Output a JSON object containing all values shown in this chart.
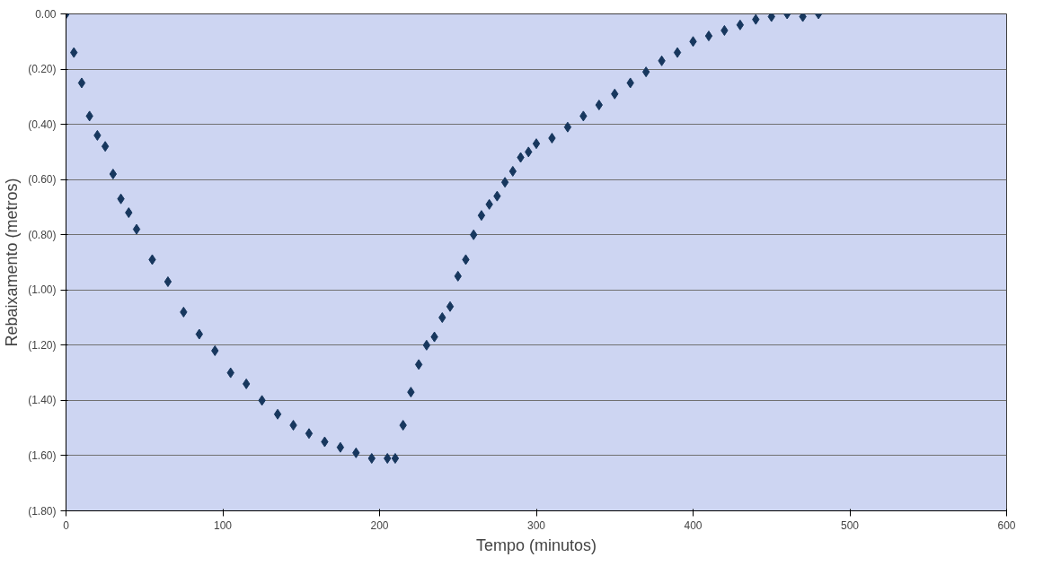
{
  "chart_data": {
    "type": "scatter",
    "xlabel": "Tempo (minutos)",
    "ylabel": "Rebaixamento (metros)",
    "x": [
      0,
      5,
      10,
      15,
      20,
      25,
      30,
      35,
      40,
      45,
      55,
      65,
      75,
      85,
      95,
      105,
      115,
      125,
      135,
      145,
      155,
      165,
      175,
      185,
      195,
      205,
      210,
      215,
      220,
      225,
      230,
      235,
      240,
      245,
      250,
      255,
      260,
      265,
      270,
      275,
      280,
      285,
      290,
      295,
      300,
      310,
      320,
      330,
      340,
      350,
      360,
      370,
      380,
      390,
      400,
      410,
      420,
      430,
      440,
      450,
      460,
      470,
      480
    ],
    "series": [
      {
        "color": "#17375e",
        "values": [
          0,
          -0.14,
          -0.25,
          -0.37,
          -0.44,
          -0.48,
          -0.58,
          -0.67,
          -0.72,
          -0.78,
          -0.89,
          -0.97,
          -1.08,
          -1.16,
          -1.22,
          -1.3,
          -1.34,
          -1.4,
          -1.45,
          -1.49,
          -1.52,
          -1.55,
          -1.57,
          -1.59,
          -1.61,
          -1.61,
          -1.61,
          -1.49,
          -1.37,
          -1.27,
          -1.2,
          -1.17,
          -1.1,
          -1.06,
          -0.95,
          -0.89,
          -0.8,
          -0.73,
          -0.69,
          -0.66,
          -0.61,
          -0.57,
          -0.52,
          -0.5,
          -0.47,
          -0.45,
          -0.41,
          -0.37,
          -0.33,
          -0.29,
          -0.25,
          -0.21,
          -0.17,
          -0.14,
          -0.1,
          -0.08,
          -0.06,
          -0.04,
          -0.02,
          -0.01,
          0,
          -0.01,
          0
        ]
      }
    ],
    "marker": "diamond",
    "grid": "y",
    "xlim": [
      0,
      600
    ],
    "xticks": [
      0,
      100,
      200,
      300,
      400,
      500,
      600
    ],
    "ylim": [
      -1.8,
      0
    ],
    "yticks": [
      {
        "value": 0,
        "label": "0.00"
      },
      {
        "value": -0.2,
        "label": "(0.20)"
      },
      {
        "value": -0.4,
        "label": "(0.40)"
      },
      {
        "value": -0.6,
        "label": "(0.60)"
      },
      {
        "value": -0.8,
        "label": "(0.80)"
      },
      {
        "value": -1.0,
        "label": "(1.00)"
      },
      {
        "value": -1.2,
        "label": "(1.20)"
      },
      {
        "value": -1.4,
        "label": "(1.40)"
      },
      {
        "value": -1.6,
        "label": "(1.60)"
      },
      {
        "value": -1.8,
        "label": "(1.80)"
      }
    ]
  }
}
